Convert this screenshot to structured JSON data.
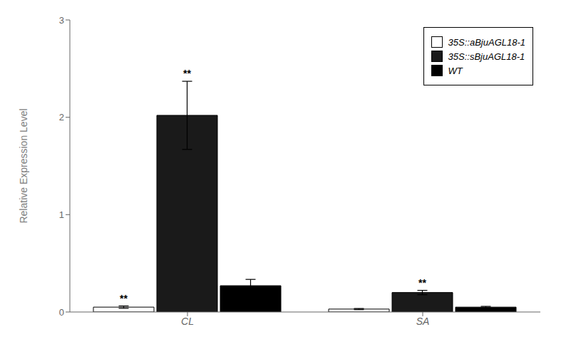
{
  "chart_data": {
    "type": "bar",
    "categories": [
      "CL",
      "SA"
    ],
    "series": [
      {
        "name": "35S::aBjuAGL18-1",
        "color": "#ffffff",
        "values": [
          0.05,
          0.03
        ],
        "errors": [
          0.012,
          0.006
        ],
        "annotations": [
          "**",
          null
        ]
      },
      {
        "name": "35S::sBjuAGL18-1",
        "color": "#1a1a1a",
        "values": [
          2.02,
          0.2
        ],
        "errors": [
          0.35,
          0.022
        ],
        "annotations": [
          "**",
          "**"
        ]
      },
      {
        "name": "WT",
        "color": "#000000",
        "values": [
          0.27,
          0.05
        ],
        "errors": [
          0.065,
          0.008
        ],
        "annotations": [
          null,
          null
        ]
      }
    ],
    "ylabel": "Relative Expression Level",
    "ylim": [
      0,
      3
    ],
    "yticks": [
      0,
      1,
      2,
      3
    ],
    "grid": false,
    "legend": "upper right"
  }
}
